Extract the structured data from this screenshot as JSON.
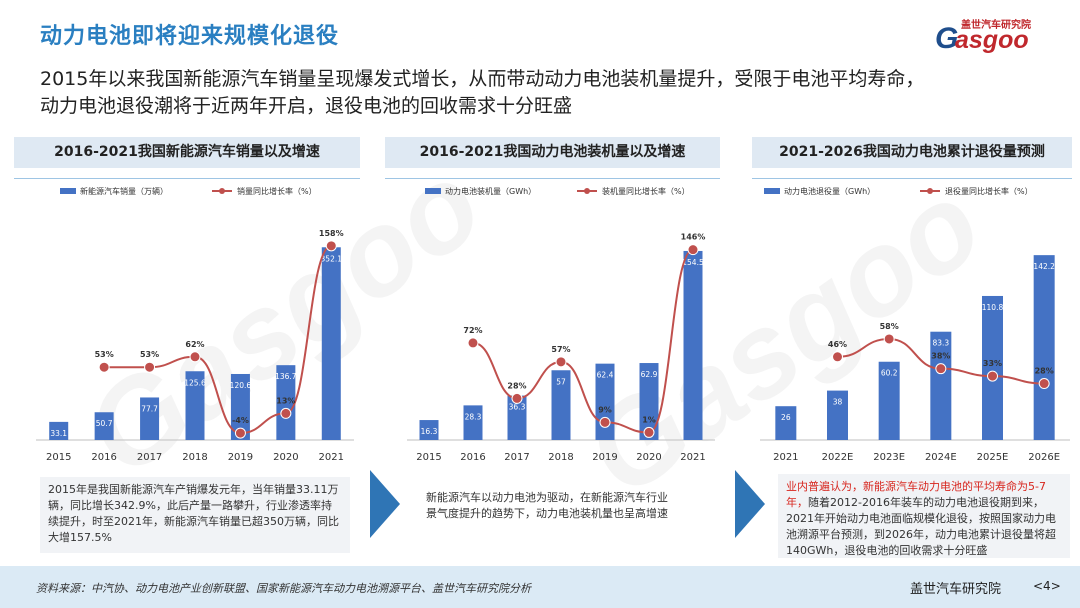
{
  "slide": {
    "title": "动力电池即将迎来规模化退役",
    "headline_line1": "2015年以来我国新能源汽车销量呈现爆发式增长，从而带动动力电池装机量提升，受限于电池平均寿命，",
    "headline_line2": "动力电池退役潮将于近两年开启，退役电池的回收需求十分旺盛"
  },
  "logo": {
    "top": "盖世汽车研究院",
    "word": "asgoo",
    "g": "G"
  },
  "panels": [
    {
      "title": "2016-2021我国新能源汽车销量以及增速"
    },
    {
      "title": "2016-2021我国动力电池装机量以及增速"
    },
    {
      "title": "2021-2026我国动力电池累计退役量预测"
    }
  ],
  "descriptions": {
    "d1": "2015年是我国新能源汽车产销爆发元年，当年销量33.11万辆，同比增长342.9%，此后产量一路攀升，行业渗透率持续提升，时至2021年，新能源汽车销量已超350万辆，同比大增157.5%",
    "d2": "新能源汽车以动力电池为驱动，在新能源汽车行业景气度提升的趋势下，动力电池装机量也呈高增速",
    "d3_red": "业内普遍认为，新能源汽车动力电池的平均寿命为5-7年，",
    "d3_rest": "随着2012-2016年装车的动力电池退役期到来，2021年开始动力电池面临规模化退役，按照国家动力电池溯源平台预测，到2026年，动力电池累计退役量将超140GWh，退役电池的回收需求十分旺盛"
  },
  "footer": {
    "source": "资料来源：中汽协、动力电池产业创新联盟、国家新能源汽车动力电池溯源平台、盖世汽车研究院分析",
    "org": "盖世汽车研究院",
    "page": "<4>"
  },
  "colors": {
    "bar": "#4472c4",
    "line": "#c0504d",
    "title_blue": "#2a7fc1",
    "arrow": "#2f75b5"
  },
  "chart_data": [
    {
      "type": "bar",
      "legend": [
        "新能源汽车销量（万辆）",
        "销量同比增长率（%）"
      ],
      "categories": [
        "2015",
        "2016",
        "2017",
        "2018",
        "2019",
        "2020",
        "2021"
      ],
      "bar_values": [
        33.1,
        50.7,
        77.7,
        125.6,
        120.6,
        136.7,
        352.1
      ],
      "bar_labels": [
        "33.1",
        "50.7",
        "77.7",
        "125.6",
        "120.6",
        "136.7",
        "352.1"
      ],
      "rate_values": [
        null,
        53,
        53,
        62,
        -4,
        13,
        158
      ],
      "rate_labels": [
        "",
        "53%",
        "53%",
        "62%",
        "-4%",
        "13%",
        "158%"
      ]
    },
    {
      "type": "bar",
      "legend": [
        "动力电池装机量（GWh）",
        "装机量同比增长率（%）"
      ],
      "categories": [
        "2015",
        "2016",
        "2017",
        "2018",
        "2019",
        "2020",
        "2021"
      ],
      "bar_values": [
        16.3,
        28.3,
        36.3,
        57,
        62.4,
        62.9,
        154.5
      ],
      "bar_labels": [
        "16.3",
        "28.3",
        "36.3",
        "57",
        "62.4",
        "62.9",
        "154.5"
      ],
      "rate_values": [
        null,
        72,
        28,
        57,
        9,
        1,
        146
      ],
      "rate_labels": [
        "",
        "72%",
        "28%",
        "57%",
        "9%",
        "1%",
        "146%"
      ]
    },
    {
      "type": "bar",
      "legend": [
        "动力电池退役量（GWh）",
        "退役量同比增长率（%）"
      ],
      "categories": [
        "2021",
        "2022E",
        "2023E",
        "2024E",
        "2025E",
        "2026E"
      ],
      "bar_values": [
        26,
        38,
        60.2,
        83.3,
        110.8,
        142.2
      ],
      "bar_labels": [
        "26",
        "38",
        "60.2",
        "83.3",
        "110.8",
        "142.2"
      ],
      "rate_values": [
        null,
        46,
        58,
        38,
        33,
        28
      ],
      "rate_labels": [
        "",
        "46%",
        "58%",
        "38%",
        "33%",
        "28%"
      ]
    }
  ]
}
